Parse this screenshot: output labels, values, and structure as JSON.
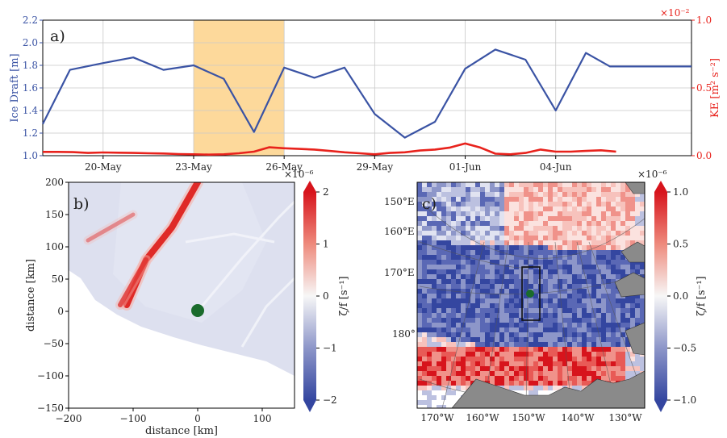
{
  "chart_data": [
    {
      "type": "line",
      "panel_label": "a)",
      "ylabel_left": "Ice Draft [m]",
      "ylabel_right": "KE [m² s⁻²]",
      "right_multiplier": "×10⁻²",
      "ylim_left": [
        1.0,
        2.2
      ],
      "ylim_right": [
        0.0,
        1.0
      ],
      "yticks_left": [
        "1.0",
        "1.2",
        "1.4",
        "1.6",
        "1.8",
        "2.0",
        "2.2"
      ],
      "yticks_right": [
        "0.0",
        "0.5",
        "1.0"
      ],
      "xlim": [
        0,
        21.5
      ],
      "xticks": [
        {
          "x": 2,
          "label": "20-May"
        },
        {
          "x": 5,
          "label": "23-May"
        },
        {
          "x": 8,
          "label": "26-May"
        },
        {
          "x": 11,
          "label": "29-May"
        },
        {
          "x": 14,
          "label": "01-Jun"
        },
        {
          "x": 17,
          "label": "04-Jun"
        }
      ],
      "shaded_span": [
        5,
        8
      ],
      "shade_color": "#fdd99b",
      "grid": true,
      "series": [
        {
          "axis": "left",
          "color": "#3a53a4",
          "x": [
            0,
            0.9,
            2.0,
            3.0,
            4.0,
            5.0,
            6.0,
            7.0,
            8.0,
            9.0,
            10.0,
            11.0,
            12.0,
            13.0,
            14.0,
            15.0,
            16.0,
            17.0,
            18.0,
            18.8,
            19.5,
            20.5,
            21.5
          ],
          "values": [
            1.28,
            1.76,
            1.82,
            1.87,
            1.76,
            1.8,
            1.68,
            1.21,
            1.78,
            1.69,
            1.78,
            1.37,
            1.16,
            1.3,
            1.77,
            1.94,
            1.85,
            1.4,
            1.91,
            1.79,
            1.79,
            1.79,
            1.79
          ]
        },
        {
          "axis": "right",
          "color": "#e8221c",
          "x": [
            0,
            0.5,
            1.0,
            1.5,
            2.0,
            2.5,
            3.0,
            3.5,
            4.0,
            4.5,
            5.0,
            5.5,
            6.0,
            6.5,
            7.0,
            7.5,
            8.0,
            8.5,
            9.0,
            9.5,
            10.0,
            10.5,
            11.0,
            11.5,
            12.0,
            12.5,
            13.0,
            13.5,
            14.0,
            14.5,
            15.0,
            15.5,
            16.0,
            16.5,
            17.0,
            17.5,
            18.0,
            18.5,
            19.0
          ],
          "values": [
            0.028,
            0.028,
            0.026,
            0.02,
            0.024,
            0.022,
            0.02,
            0.018,
            0.016,
            0.012,
            0.01,
            0.008,
            0.01,
            0.018,
            0.03,
            0.062,
            0.055,
            0.05,
            0.045,
            0.035,
            0.025,
            0.018,
            0.01,
            0.02,
            0.025,
            0.038,
            0.045,
            0.06,
            0.09,
            0.06,
            0.015,
            0.01,
            0.02,
            0.045,
            0.03,
            0.03,
            0.035,
            0.04,
            0.03
          ]
        }
      ]
    },
    {
      "type": "heatmap",
      "panel_label": "b)",
      "xlabel": "distance [km]",
      "ylabel": "distance [km]",
      "xlim": [
        -200,
        150
      ],
      "ylim": [
        -150,
        200
      ],
      "xticks": [
        "−200",
        "−100",
        "0",
        "100"
      ],
      "yticks": [
        "200",
        "150",
        "100",
        "50",
        "0",
        "−50",
        "−100",
        "−150"
      ],
      "marker": {
        "x": 0,
        "y": 0,
        "color": "#1a6b2c"
      },
      "colorbar": {
        "label": "ζ/f [s⁻¹]",
        "multiplier": "×10⁻⁶",
        "ticks": [
          "2",
          "1",
          "0",
          "−1",
          "−2"
        ],
        "min": -2,
        "max": 2
      },
      "features": [
        {
          "name": "main-ridge",
          "sign": "positive",
          "points": [
            [
              0,
              200
            ],
            [
              -40,
              130
            ],
            [
              -80,
              80
            ],
            [
              -110,
              10
            ]
          ]
        },
        {
          "name": "branch-ridge",
          "sign": "positive",
          "points": [
            [
              -80,
              80
            ],
            [
              -120,
              10
            ]
          ]
        },
        {
          "name": "upper-ridge",
          "sign": "positive",
          "points": [
            [
              -100,
              150
            ],
            [
              -170,
              110
            ]
          ]
        }
      ]
    },
    {
      "type": "heatmap",
      "panel_label": "c)",
      "lat_labels": [
        "150°E",
        "160°E",
        "170°E",
        "180°"
      ],
      "lon_labels": [
        "170°W",
        "160°W",
        "150°W",
        "140°W",
        "130°W"
      ],
      "marker": {
        "color": "#1a6b2c"
      },
      "box": true,
      "colorbar": {
        "label": "ζ/f [s⁻¹]",
        "multiplier": "×10⁻⁶",
        "ticks": [
          "1.0",
          "0.5",
          "0.0",
          "−0.5",
          "−1.0"
        ],
        "min": -1,
        "max": 1
      }
    }
  ]
}
